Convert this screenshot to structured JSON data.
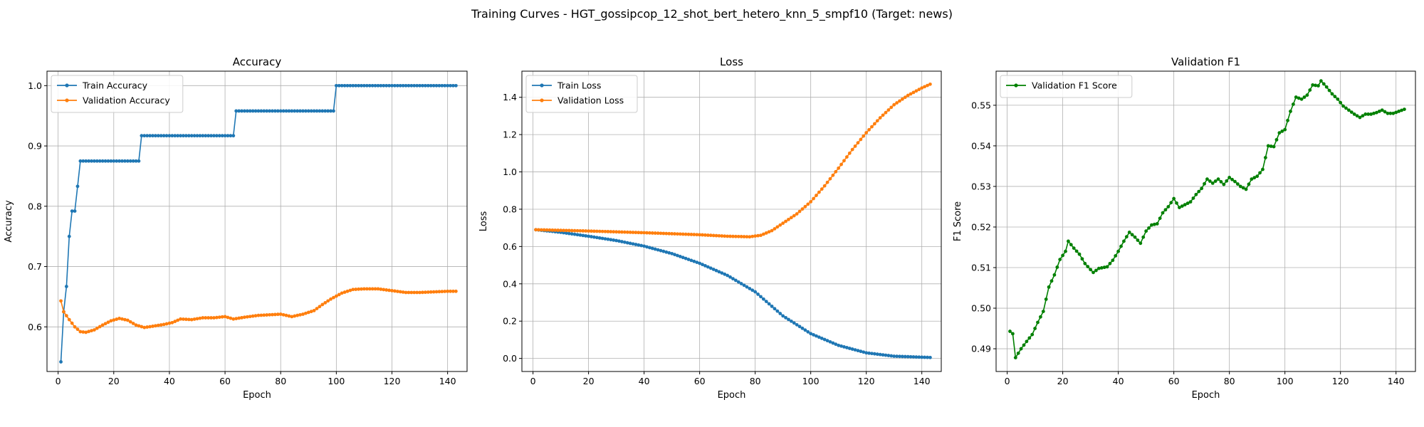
{
  "figure": {
    "suptitle": "Training Curves - HGT_gossipcop_12_shot_bert_hetero_knn_5_smpf10 (Target: news)"
  },
  "colors": {
    "blue": "#1f77b4",
    "orange": "#ff7f0e",
    "green": "#008000",
    "grid": "#b0b0b0"
  },
  "chart_data": [
    {
      "type": "line",
      "title": "Accuracy",
      "xlabel": "Epoch",
      "ylabel": "Accuracy",
      "xlim": [
        -4,
        147
      ],
      "ylim": [
        0.526,
        1.024
      ],
      "xticks": [
        0,
        20,
        40,
        60,
        80,
        100,
        120,
        140
      ],
      "yticks": [
        0.6,
        0.7,
        0.8,
        0.9,
        1.0
      ],
      "ytick_labels": [
        "0.6",
        "0.7",
        "0.8",
        "0.9",
        "1.0"
      ],
      "grid": true,
      "legend": "upper left",
      "series": [
        {
          "name": "Train Accuracy",
          "color": "#1f77b4",
          "segments": [
            {
              "from": 1,
              "to": 1,
              "values": [
                0.542
              ]
            },
            {
              "from": 2,
              "to": 2,
              "values": [
                0.625
              ]
            },
            {
              "from": 3,
              "to": 3,
              "values": [
                0.667
              ]
            },
            {
              "from": 4,
              "to": 4,
              "values": [
                0.75
              ]
            },
            {
              "from": 5,
              "to": 5,
              "values": [
                0.792
              ]
            },
            {
              "from": 6,
              "to": 6,
              "values": [
                0.792
              ]
            },
            {
              "from": 7,
              "to": 7,
              "values": [
                0.833
              ]
            },
            {
              "from": 8,
              "to": 29,
              "values": [
                0.875
              ]
            },
            {
              "from": 30,
              "to": 63,
              "values": [
                0.917
              ]
            },
            {
              "from": 64,
              "to": 99,
              "values": [
                0.958
              ]
            },
            {
              "from": 100,
              "to": 143,
              "values": [
                1.0
              ]
            }
          ]
        },
        {
          "name": "Validation Accuracy",
          "color": "#ff7f0e",
          "anchors": [
            [
              1,
              0.643
            ],
            [
              2,
              0.625
            ],
            [
              4,
              0.612
            ],
            [
              6,
              0.6
            ],
            [
              8,
              0.592
            ],
            [
              10,
              0.591
            ],
            [
              13,
              0.595
            ],
            [
              16,
              0.603
            ],
            [
              19,
              0.61
            ],
            [
              22,
              0.614
            ],
            [
              25,
              0.611
            ],
            [
              28,
              0.603
            ],
            [
              31,
              0.599
            ],
            [
              34,
              0.601
            ],
            [
              38,
              0.604
            ],
            [
              41,
              0.607
            ],
            [
              44,
              0.613
            ],
            [
              48,
              0.612
            ],
            [
              52,
              0.615
            ],
            [
              56,
              0.615
            ],
            [
              60,
              0.617
            ],
            [
              63,
              0.613
            ],
            [
              67,
              0.616
            ],
            [
              72,
              0.619
            ],
            [
              76,
              0.62
            ],
            [
              80,
              0.621
            ],
            [
              84,
              0.617
            ],
            [
              88,
              0.621
            ],
            [
              92,
              0.627
            ],
            [
              95,
              0.637
            ],
            [
              98,
              0.646
            ],
            [
              102,
              0.656
            ],
            [
              106,
              0.662
            ],
            [
              110,
              0.663
            ],
            [
              115,
              0.663
            ],
            [
              120,
              0.66
            ],
            [
              125,
              0.657
            ],
            [
              130,
              0.657
            ],
            [
              135,
              0.658
            ],
            [
              140,
              0.659
            ],
            [
              143,
              0.659
            ]
          ]
        }
      ]
    },
    {
      "type": "line",
      "title": "Loss",
      "xlabel": "Epoch",
      "ylabel": "Loss",
      "xlim": [
        -4,
        147
      ],
      "ylim": [
        -0.07,
        1.54
      ],
      "xticks": [
        0,
        20,
        40,
        60,
        80,
        100,
        120,
        140
      ],
      "yticks": [
        0.0,
        0.2,
        0.4,
        0.6,
        0.8,
        1.0,
        1.2,
        1.4
      ],
      "ytick_labels": [
        "0.0",
        "0.2",
        "0.4",
        "0.6",
        "0.8",
        "1.0",
        "1.2",
        "1.4"
      ],
      "grid": true,
      "legend": "upper left",
      "series": [
        {
          "name": "Train Loss",
          "color": "#1f77b4",
          "anchors": [
            [
              1,
              0.69
            ],
            [
              10,
              0.676
            ],
            [
              20,
              0.655
            ],
            [
              30,
              0.632
            ],
            [
              40,
              0.602
            ],
            [
              50,
              0.562
            ],
            [
              60,
              0.51
            ],
            [
              70,
              0.445
            ],
            [
              80,
              0.357
            ],
            [
              90,
              0.228
            ],
            [
              100,
              0.133
            ],
            [
              110,
              0.07
            ],
            [
              120,
              0.03
            ],
            [
              130,
              0.012
            ],
            [
              143,
              0.005
            ]
          ]
        },
        {
          "name": "Validation Loss",
          "color": "#ff7f0e",
          "anchors": [
            [
              1,
              0.69
            ],
            [
              20,
              0.683
            ],
            [
              40,
              0.674
            ],
            [
              60,
              0.663
            ],
            [
              70,
              0.655
            ],
            [
              78,
              0.652
            ],
            [
              82,
              0.66
            ],
            [
              86,
              0.685
            ],
            [
              90,
              0.725
            ],
            [
              95,
              0.775
            ],
            [
              100,
              0.84
            ],
            [
              105,
              0.925
            ],
            [
              110,
              1.02
            ],
            [
              115,
              1.12
            ],
            [
              120,
              1.21
            ],
            [
              125,
              1.29
            ],
            [
              130,
              1.36
            ],
            [
              135,
              1.41
            ],
            [
              140,
              1.45
            ],
            [
              143,
              1.47
            ]
          ]
        }
      ]
    },
    {
      "type": "line",
      "title": "Validation F1",
      "xlabel": "Epoch",
      "ylabel": "F1 Score",
      "xlim": [
        -4,
        147
      ],
      "ylim": [
        0.4844,
        0.5584
      ],
      "xticks": [
        0,
        20,
        40,
        60,
        80,
        100,
        120,
        140
      ],
      "yticks": [
        0.49,
        0.5,
        0.51,
        0.52,
        0.53,
        0.54,
        0.55
      ],
      "ytick_labels": [
        "0.49",
        "0.50",
        "0.51",
        "0.52",
        "0.53",
        "0.54",
        "0.55"
      ],
      "grid": true,
      "legend": "upper left",
      "series": [
        {
          "name": "Validation F1 Score",
          "color": "#008000",
          "anchors": [
            [
              1,
              0.4943
            ],
            [
              2,
              0.4937
            ],
            [
              3,
              0.4878
            ],
            [
              5,
              0.49
            ],
            [
              7,
              0.4918
            ],
            [
              9,
              0.4935
            ],
            [
              11,
              0.4965
            ],
            [
              13,
              0.4992
            ],
            [
              15,
              0.5052
            ],
            [
              17,
              0.5082
            ],
            [
              19,
              0.512
            ],
            [
              21,
              0.514
            ],
            [
              22,
              0.5165
            ],
            [
              24,
              0.5148
            ],
            [
              26,
              0.5133
            ],
            [
              28,
              0.511
            ],
            [
              30,
              0.5095
            ],
            [
              31,
              0.5088
            ],
            [
              33,
              0.5098
            ],
            [
              36,
              0.5102
            ],
            [
              38,
              0.5118
            ],
            [
              40,
              0.514
            ],
            [
              42,
              0.5165
            ],
            [
              44,
              0.5187
            ],
            [
              46,
              0.5175
            ],
            [
              48,
              0.516
            ],
            [
              50,
              0.519
            ],
            [
              52,
              0.5205
            ],
            [
              54,
              0.5208
            ],
            [
              56,
              0.5235
            ],
            [
              58,
              0.525
            ],
            [
              60,
              0.527
            ],
            [
              62,
              0.5248
            ],
            [
              64,
              0.5255
            ],
            [
              66,
              0.5262
            ],
            [
              68,
              0.528
            ],
            [
              70,
              0.5295
            ],
            [
              72,
              0.5318
            ],
            [
              74,
              0.5308
            ],
            [
              76,
              0.5318
            ],
            [
              78,
              0.5305
            ],
            [
              80,
              0.5322
            ],
            [
              82,
              0.5312
            ],
            [
              84,
              0.53
            ],
            [
              86,
              0.5293
            ],
            [
              88,
              0.5318
            ],
            [
              90,
              0.5325
            ],
            [
              92,
              0.5342
            ],
            [
              94,
              0.54
            ],
            [
              96,
              0.5398
            ],
            [
              98,
              0.5432
            ],
            [
              100,
              0.544
            ],
            [
              102,
              0.5485
            ],
            [
              104,
              0.552
            ],
            [
              106,
              0.5515
            ],
            [
              108,
              0.5525
            ],
            [
              110,
              0.555
            ],
            [
              112,
              0.5548
            ],
            [
              113,
              0.556
            ],
            [
              115,
              0.5545
            ],
            [
              117,
              0.5528
            ],
            [
              119,
              0.5515
            ],
            [
              121,
              0.5498
            ],
            [
              123,
              0.5488
            ],
            [
              125,
              0.5478
            ],
            [
              127,
              0.547
            ],
            [
              129,
              0.5478
            ],
            [
              131,
              0.5478
            ],
            [
              133,
              0.5482
            ],
            [
              135,
              0.5488
            ],
            [
              137,
              0.548
            ],
            [
              139,
              0.548
            ],
            [
              141,
              0.5485
            ],
            [
              143,
              0.549
            ]
          ]
        }
      ]
    }
  ]
}
